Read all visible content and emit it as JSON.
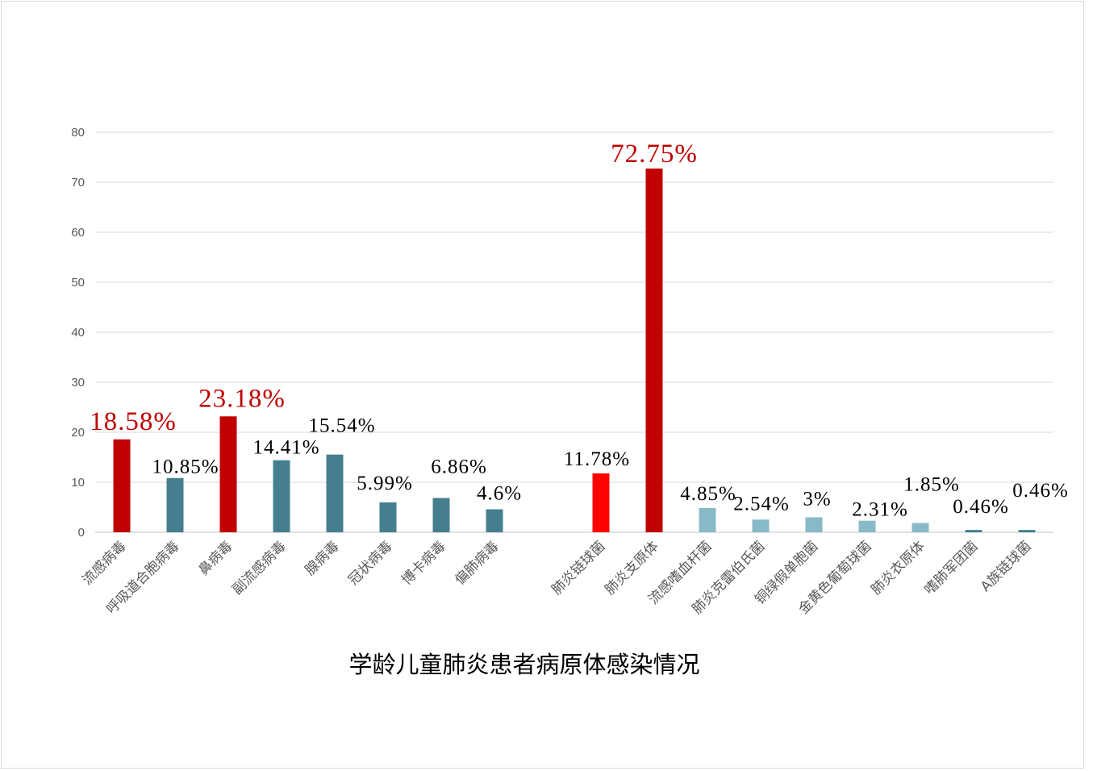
{
  "chart_data": {
    "type": "bar",
    "title": "学龄儿童肺炎患者病原体感染情况",
    "xlabel": "",
    "ylabel": "",
    "ylim": [
      0,
      80
    ],
    "yticks": [
      0,
      10,
      20,
      30,
      40,
      50,
      60,
      70,
      80
    ],
    "grid": true,
    "legend": "none",
    "categories": [
      "流感病毒",
      "呼吸道合胞病毒",
      "鼻病毒",
      "副流感病毒",
      "腺病毒",
      "冠状病毒",
      "博卡病毒",
      "偏肺病毒",
      "",
      "肺炎链球菌",
      "肺炎支原体",
      "流感嗜血杆菌",
      "肺炎克雷伯氏菌",
      "铜绿假单胞菌",
      "金黄色葡萄球菌",
      "肺炎衣原体",
      "嗜肺军团菌",
      "A族链球菌"
    ],
    "values": [
      18.58,
      10.85,
      23.18,
      14.41,
      15.54,
      5.99,
      6.86,
      4.6,
      null,
      11.78,
      72.75,
      4.85,
      2.54,
      3,
      2.31,
      1.85,
      0.46,
      0.46
    ],
    "data_labels": [
      "18.58%",
      "10.85%",
      "23.18%",
      "14.41%",
      "15.54%",
      "5.99%",
      "6.86%",
      "4.6%",
      "",
      "11.78%",
      "72.75%",
      "4.85%",
      "2.54%",
      "3%",
      "2.31%",
      "1.85%",
      "0.46%",
      "0.46%"
    ],
    "bar_colors": [
      "#c00000",
      "#457f8f",
      "#c00000",
      "#457f8f",
      "#457f8f",
      "#457f8f",
      "#457f8f",
      "#457f8f",
      "",
      "#ff0000",
      "#c00000",
      "#88b9c7",
      "#88b9c7",
      "#88b9c7",
      "#88b9c7",
      "#88b9c7",
      "#457f8f",
      "#457f8f"
    ],
    "highlighted": [
      true,
      false,
      true,
      false,
      false,
      false,
      false,
      false,
      false,
      false,
      true,
      false,
      false,
      false,
      false,
      false,
      false,
      false
    ],
    "colors": {
      "highlight_label": "#c00000",
      "grid": "#d9d9d9",
      "axis_text": "#595959"
    }
  }
}
